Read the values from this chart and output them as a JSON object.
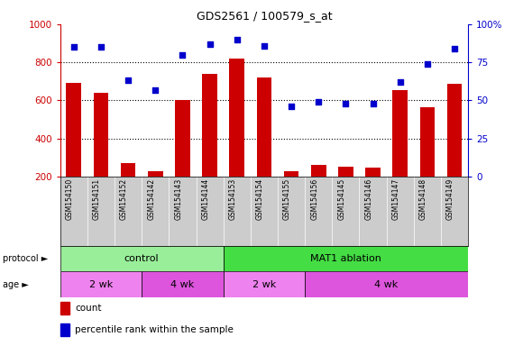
{
  "title": "GDS2561 / 100579_s_at",
  "samples": [
    "GSM154150",
    "GSM154151",
    "GSM154152",
    "GSM154142",
    "GSM154143",
    "GSM154144",
    "GSM154153",
    "GSM154154",
    "GSM154155",
    "GSM154156",
    "GSM154145",
    "GSM154146",
    "GSM154147",
    "GSM154148",
    "GSM154149"
  ],
  "counts": [
    690,
    640,
    270,
    230,
    600,
    740,
    820,
    720,
    230,
    260,
    250,
    248,
    655,
    565,
    685
  ],
  "percentiles": [
    85,
    85,
    63,
    57,
    80,
    87,
    90,
    86,
    46,
    49,
    48,
    48,
    62,
    74,
    84
  ],
  "ylim_left": [
    200,
    1000
  ],
  "ylim_right": [
    0,
    100
  ],
  "yticks_left": [
    200,
    400,
    600,
    800,
    1000
  ],
  "yticks_right": [
    0,
    25,
    50,
    75,
    100
  ],
  "bar_color": "#cc0000",
  "dot_color": "#0000cc",
  "protocol_groups": [
    {
      "label": "control",
      "start": 0,
      "end": 6,
      "color": "#99ee99"
    },
    {
      "label": "MAT1 ablation",
      "start": 6,
      "end": 15,
      "color": "#44dd44"
    }
  ],
  "age_groups": [
    {
      "label": "2 wk",
      "start": 0,
      "end": 3,
      "color": "#ee82ee"
    },
    {
      "label": "4 wk",
      "start": 3,
      "end": 6,
      "color": "#dd55dd"
    },
    {
      "label": "2 wk",
      "start": 6,
      "end": 9,
      "color": "#ee82ee"
    },
    {
      "label": "4 wk",
      "start": 9,
      "end": 15,
      "color": "#dd55dd"
    }
  ],
  "legend_count_label": "count",
  "legend_pct_label": "percentile rank within the sample",
  "legend_count_color": "#cc0000",
  "legend_pct_color": "#0000cc",
  "xticklabel_bg": "#cccccc",
  "left_label_color": "#cc0000",
  "right_label_color": "#0000cc",
  "protocol_left_label": "protocol ►",
  "age_left_label": "age ►"
}
